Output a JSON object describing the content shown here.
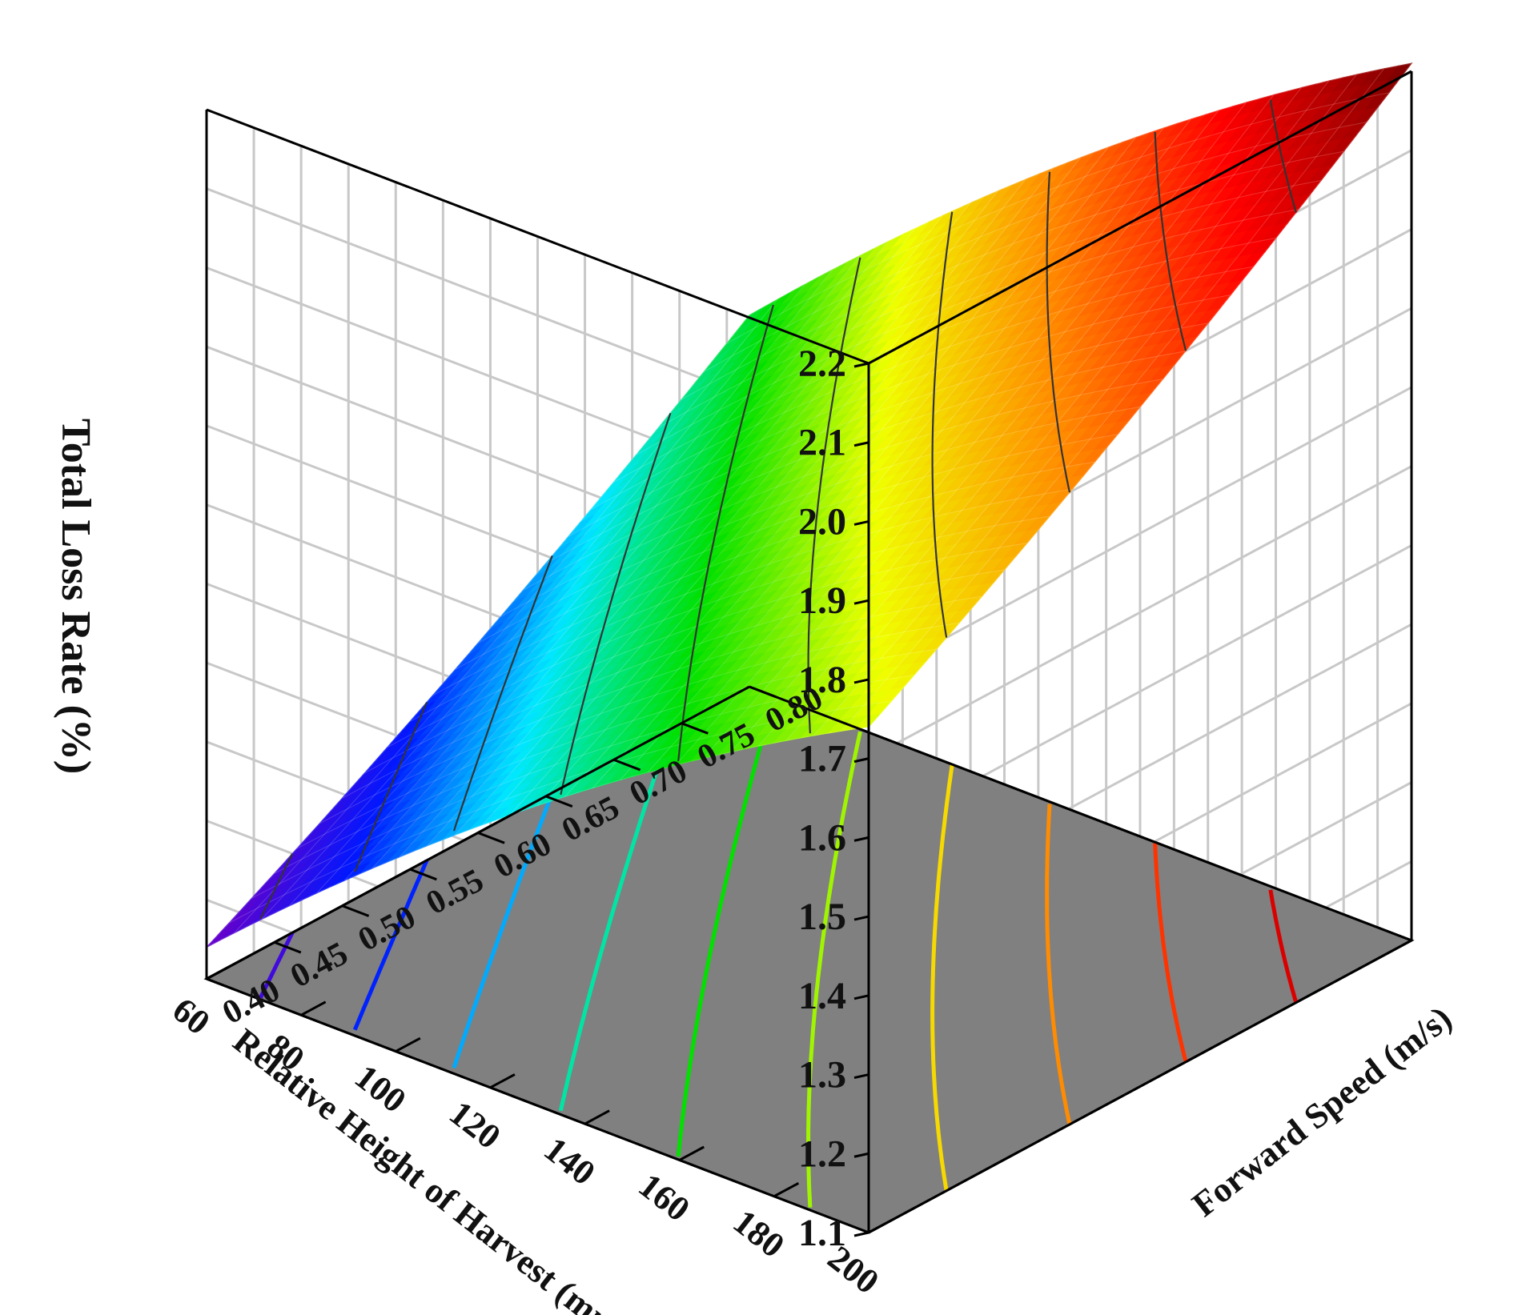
{
  "chart_data": {
    "type": "surface3d",
    "title": "",
    "zlabel": "Total Loss Rate (%)",
    "xlabel": "Relative Height of Harvest (mm)",
    "ylabel": "Forward Speed (m/s)",
    "x_ticks": [
      "200",
      "180",
      "160",
      "140",
      "120",
      "100",
      "80",
      "60"
    ],
    "y_ticks": [
      "0.40",
      "0.45",
      "0.50",
      "0.55",
      "0.60",
      "0.65",
      "0.70",
      "0.75",
      "0.80"
    ],
    "z_ticks": [
      "1.1",
      "1.2",
      "1.3",
      "1.4",
      "1.5",
      "1.6",
      "1.7",
      "1.8",
      "1.9",
      "2.0",
      "2.1",
      "2.2"
    ],
    "xlim": [
      60,
      200
    ],
    "ylim": [
      0.4,
      0.8
    ],
    "zlim": [
      1.1,
      2.2
    ],
    "corner_values": [
      {
        "x": 60,
        "y": 0.4,
        "z": 1.14
      },
      {
        "x": 200,
        "y": 0.4,
        "z": 1.74
      },
      {
        "x": 60,
        "y": 0.8,
        "z": 1.57
      },
      {
        "x": 200,
        "y": 0.8,
        "z": 2.21
      }
    ],
    "contour_levels": [
      1.2,
      1.3,
      1.4,
      1.5,
      1.6,
      1.7,
      1.8,
      1.9,
      2.0,
      2.1
    ],
    "colormap": [
      "#6a00c8",
      "#0018ff",
      "#00e8ff",
      "#00e000",
      "#f0ff00",
      "#ff8800",
      "#ff0000",
      "#7a0000"
    ],
    "floor_color": "#808080",
    "grid": true
  }
}
